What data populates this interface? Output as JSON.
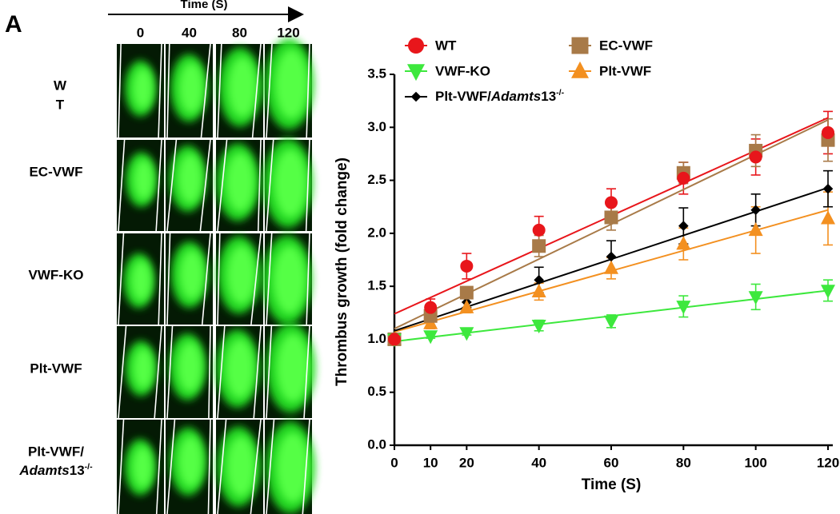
{
  "panel_label": "A",
  "image_panel": {
    "time_label": "Time (S)",
    "columns": [
      "0",
      "40",
      "80",
      "120"
    ],
    "rows": [
      [
        "W",
        "T"
      ],
      [
        "EC-VWF"
      ],
      [
        "VWF-KO"
      ],
      [
        "Plt-VWF"
      ],
      [
        "Plt-VWF/",
        "Adamts13-/-"
      ]
    ]
  },
  "chart_data": {
    "type": "line",
    "x_label": "Time (S)",
    "y_label": "Thrombus growth (fold change)",
    "x": [
      0,
      10,
      20,
      40,
      60,
      80,
      100,
      120
    ],
    "xlim": [
      0,
      120
    ],
    "xticks": [
      0,
      10,
      20,
      40,
      60,
      80,
      100,
      120
    ],
    "ylim": [
      0,
      3.5
    ],
    "yticks": [
      {
        "value": 0,
        "label": "0.0"
      },
      0.5,
      {
        "value": 1,
        "label": "1.0"
      },
      1.5,
      {
        "value": 2,
        "label": "2.0"
      },
      2.5,
      {
        "value": 3,
        "label": "3.0"
      },
      3.5
    ],
    "grid": false,
    "series": [
      {
        "name": "WT",
        "color": "#e8161b",
        "marker": "circle",
        "values": [
          1.0,
          1.3,
          1.69,
          2.03,
          2.29,
          2.52,
          2.72,
          2.95
        ],
        "errors": [
          0.03,
          0.08,
          0.12,
          0.13,
          0.13,
          0.15,
          0.17,
          0.2
        ],
        "trend": [
          1.24,
          3.09
        ]
      },
      {
        "name": "VWF-KO",
        "color": "#3de83d",
        "marker": "triangle-down",
        "values": [
          1.0,
          1.03,
          1.06,
          1.13,
          1.17,
          1.31,
          1.4,
          1.46
        ],
        "errors": [
          0.02,
          0.02,
          0.02,
          0.05,
          0.06,
          0.1,
          0.12,
          0.1
        ],
        "trend": [
          0.98,
          1.46
        ]
      },
      {
        "name": "EC-VWF",
        "color": "#a87a48",
        "marker": "square",
        "values": [
          1.0,
          1.22,
          1.44,
          1.88,
          2.15,
          2.57,
          2.78,
          2.88
        ],
        "errors": [
          0.03,
          0.05,
          0.05,
          0.1,
          0.12,
          0.1,
          0.15,
          0.2
        ],
        "trend": [
          1.1,
          3.07
        ]
      },
      {
        "name": "Plt-VWF",
        "color": "#f39020",
        "marker": "triangle-up",
        "values": [
          1.0,
          1.15,
          1.3,
          1.45,
          1.67,
          1.9,
          2.03,
          2.14
        ],
        "errors": [
          0.03,
          0.05,
          0.05,
          0.08,
          0.1,
          0.15,
          0.22,
          0.25
        ],
        "trend": [
          1.07,
          2.22
        ]
      },
      {
        "name": "Plt-VWF/Adamts13-/-",
        "color": "#000000",
        "marker": "diamond",
        "values": [
          1.0,
          1.22,
          1.35,
          1.56,
          1.78,
          2.07,
          2.22,
          2.42
        ],
        "errors": [
          0.03,
          0.05,
          0.05,
          0.12,
          0.15,
          0.17,
          0.15,
          0.17
        ],
        "trend": [
          1.08,
          2.43
        ]
      }
    ]
  }
}
